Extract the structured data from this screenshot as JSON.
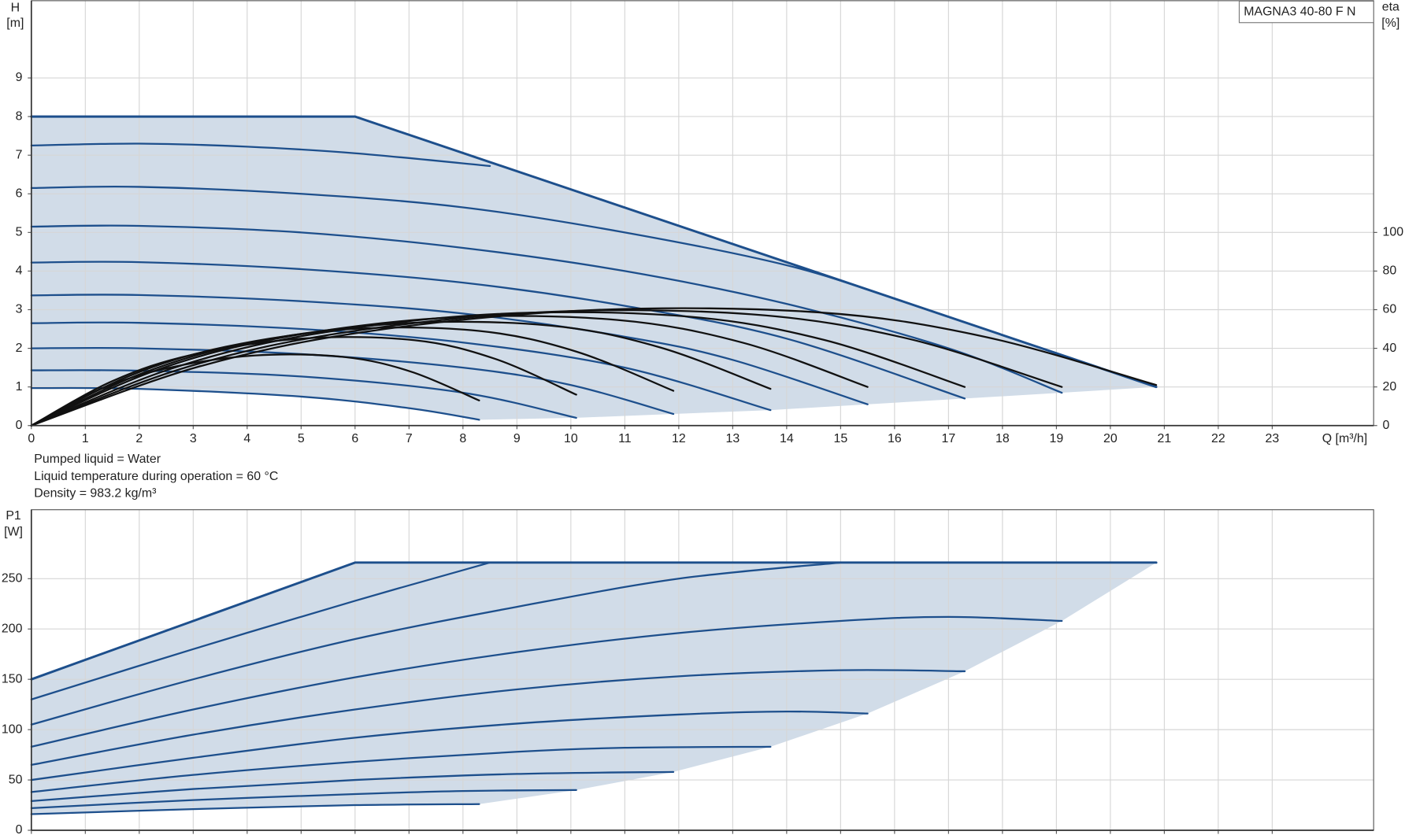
{
  "product_label": "MAGNA3 40-80 F N",
  "notes": [
    "Pumped liquid = Water",
    "Liquid temperature during operation = 60 °C",
    "Density = 983.2 kg/m³"
  ],
  "chart_data": [
    {
      "type": "line",
      "x_label": "Q [m³/h]",
      "y_label": "H",
      "y_unit": "[m]",
      "y2_label": "eta",
      "y2_unit": "[%]",
      "xlim": [
        0,
        24.88
      ],
      "xticks": [
        0,
        1,
        2,
        3,
        4,
        5,
        6,
        7,
        8,
        9,
        10,
        11,
        12,
        13,
        14,
        15,
        16,
        17,
        18,
        19,
        20,
        21,
        22,
        23
      ],
      "show_xtick_labels": true,
      "ylim": [
        0,
        11
      ],
      "yticks": [
        0,
        1,
        2,
        3,
        4,
        5,
        6,
        7,
        8,
        9
      ],
      "y2lim": [
        0,
        220
      ],
      "y2ticks": [
        0,
        20,
        40,
        60,
        80,
        100
      ],
      "grid": true,
      "fill": "#d1dce8",
      "series": [
        {
          "color": "#1d4f8c",
          "smooth": false,
          "x": [
            0,
            6,
            20.85
          ],
          "values": [
            8,
            8,
            1.0
          ]
        },
        {
          "color": "#1d4f8c",
          "smooth": true,
          "x": [
            0,
            2,
            4,
            6,
            8.5
          ],
          "values": [
            7.25,
            7.3,
            7.22,
            7.05,
            6.72
          ]
        },
        {
          "color": "#1d4f8c",
          "smooth": true,
          "x": [
            0,
            2,
            5,
            8,
            11,
            14,
            16
          ],
          "values": [
            6.15,
            6.18,
            6.0,
            5.65,
            5.0,
            4.15,
            3.29
          ]
        },
        {
          "color": "#1d4f8c",
          "smooth": true,
          "x": [
            0,
            2,
            5,
            8,
            11,
            14,
            17,
            19.1
          ],
          "values": [
            5.15,
            5.17,
            5.0,
            4.6,
            4.0,
            3.15,
            2.0,
            0.85
          ]
        },
        {
          "color": "#1d4f8c",
          "smooth": true,
          "x": [
            0,
            2,
            5,
            8,
            11,
            14,
            17.3
          ],
          "values": [
            4.22,
            4.23,
            4.05,
            3.7,
            3.1,
            2.25,
            0.7
          ]
        },
        {
          "color": "#1d4f8c",
          "smooth": true,
          "x": [
            0,
            2,
            5,
            8,
            11,
            13,
            15.5
          ],
          "values": [
            3.37,
            3.38,
            3.22,
            2.9,
            2.3,
            1.7,
            0.55
          ]
        },
        {
          "color": "#1d4f8c",
          "smooth": true,
          "x": [
            0,
            2,
            5,
            8,
            11,
            13.7
          ],
          "values": [
            2.65,
            2.66,
            2.5,
            2.15,
            1.5,
            0.4
          ]
        },
        {
          "color": "#1d4f8c",
          "smooth": true,
          "x": [
            0,
            2,
            5,
            8,
            10,
            11.9
          ],
          "values": [
            2.0,
            2.0,
            1.85,
            1.5,
            1.05,
            0.3
          ]
        },
        {
          "color": "#1d4f8c",
          "smooth": true,
          "x": [
            0,
            2,
            5,
            8,
            10.1
          ],
          "values": [
            1.43,
            1.42,
            1.27,
            0.85,
            0.2
          ]
        },
        {
          "color": "#1d4f8c",
          "smooth": true,
          "x": [
            0,
            2,
            5,
            7,
            8.3
          ],
          "values": [
            0.97,
            0.95,
            0.75,
            0.45,
            0.15
          ]
        },
        {
          "color": "#111111",
          "axis": "y2",
          "smooth": true,
          "x": [
            0,
            1.25,
            2.5,
            4.15,
            5.8,
            7.05,
            8.3
          ],
          "values": [
            0,
            18.5,
            29.6,
            36.3,
            35.5,
            27.8,
            13
          ]
        },
        {
          "color": "#111111",
          "axis": "y2",
          "smooth": true,
          "x": [
            0,
            1.5,
            3.0,
            5.05,
            7.1,
            8.6,
            10.1
          ],
          "values": [
            0,
            23,
            36.8,
            45.1,
            44.2,
            34.5,
            16
          ]
        },
        {
          "color": "#111111",
          "axis": "y2",
          "smooth": true,
          "x": [
            0,
            1.8,
            3.6,
            5.95,
            8.3,
            10.1,
            11.9
          ],
          "values": [
            0,
            25.5,
            40.8,
            50,
            49,
            38.3,
            18
          ]
        },
        {
          "color": "#111111",
          "axis": "y2",
          "smooth": true,
          "x": [
            0,
            2.05,
            4.1,
            6.85,
            9.6,
            11.65,
            13.7
          ],
          "values": [
            0,
            27,
            43.2,
            52.9,
            51.8,
            40.5,
            19
          ]
        },
        {
          "color": "#111111",
          "axis": "y2",
          "smooth": true,
          "x": [
            0,
            2.3,
            4.65,
            7.75,
            10.85,
            13.2,
            15.5
          ],
          "values": [
            0,
            28.5,
            45.6,
            55.9,
            54.7,
            42.8,
            20
          ]
        },
        {
          "color": "#111111",
          "axis": "y2",
          "smooth": true,
          "x": [
            0,
            2.6,
            5.2,
            8.65,
            12.1,
            14.7,
            17.3
          ],
          "values": [
            0,
            29.5,
            47.2,
            57.8,
            56.6,
            44.3,
            20
          ]
        },
        {
          "color": "#111111",
          "axis": "y2",
          "smooth": true,
          "x": [
            0,
            2.85,
            5.75,
            9.55,
            13.35,
            16.25,
            19.1
          ],
          "values": [
            0,
            30,
            48,
            58.8,
            57.6,
            45,
            20
          ]
        },
        {
          "color": "#111111",
          "axis": "y2",
          "smooth": true,
          "x": [
            0,
            3.1,
            6.25,
            10.4,
            14.6,
            17.7,
            20.85
          ],
          "values": [
            0,
            30.5,
            48.8,
            59.8,
            58.6,
            45.8,
            21
          ]
        }
      ]
    },
    {
      "type": "line",
      "y_label": "P1",
      "y_unit": "[W]",
      "xlim": [
        0,
        24.88
      ],
      "xticks": [
        0,
        1,
        2,
        3,
        4,
        5,
        6,
        7,
        8,
        9,
        10,
        11,
        12,
        13,
        14,
        15,
        16,
        17,
        18,
        19,
        20,
        21,
        22,
        23
      ],
      "show_xtick_labels": false,
      "ylim": [
        0,
        318.5
      ],
      "yticks": [
        0,
        50,
        100,
        150,
        200,
        250
      ],
      "grid": true,
      "fill": "#d1dce8",
      "series": [
        {
          "color": "#1d4f8c",
          "smooth": false,
          "x": [
            0,
            6,
            20.85
          ],
          "values": [
            150,
            266,
            266
          ]
        },
        {
          "color": "#1d4f8c",
          "smooth": true,
          "x": [
            0,
            3,
            6,
            8.5
          ],
          "values": [
            130,
            180,
            228,
            266
          ]
        },
        {
          "color": "#1d4f8c",
          "smooth": true,
          "x": [
            0,
            3,
            6,
            9,
            12,
            15
          ],
          "values": [
            105,
            150,
            190,
            222,
            250,
            266
          ]
        },
        {
          "color": "#1d4f8c",
          "smooth": true,
          "x": [
            0,
            3,
            6,
            9,
            12,
            15,
            17,
            19.1
          ],
          "values": [
            83,
            120,
            152,
            177,
            196,
            208,
            212,
            208
          ]
        },
        {
          "color": "#1d4f8c",
          "smooth": true,
          "x": [
            0,
            3,
            6,
            9,
            12,
            15,
            17.3
          ],
          "values": [
            65,
            95,
            120,
            140,
            153,
            159,
            158
          ]
        },
        {
          "color": "#1d4f8c",
          "smooth": true,
          "x": [
            0,
            3,
            6,
            9,
            12,
            14,
            15.5
          ],
          "values": [
            50,
            72,
            92,
            106,
            115,
            118,
            116
          ]
        },
        {
          "color": "#1d4f8c",
          "smooth": true,
          "x": [
            0,
            3,
            6,
            9,
            11,
            13.7
          ],
          "values": [
            38,
            55,
            68,
            78,
            82,
            83
          ]
        },
        {
          "color": "#1d4f8c",
          "smooth": true,
          "x": [
            0,
            3,
            6,
            9,
            11.9
          ],
          "values": [
            29,
            41,
            50,
            56,
            58
          ]
        },
        {
          "color": "#1d4f8c",
          "smooth": true,
          "x": [
            0,
            3,
            6,
            8,
            10.1
          ],
          "values": [
            22,
            30,
            36,
            39,
            40
          ]
        },
        {
          "color": "#1d4f8c",
          "smooth": true,
          "x": [
            0,
            3,
            6,
            8.3
          ],
          "values": [
            16,
            21,
            25,
            26
          ]
        }
      ]
    }
  ]
}
